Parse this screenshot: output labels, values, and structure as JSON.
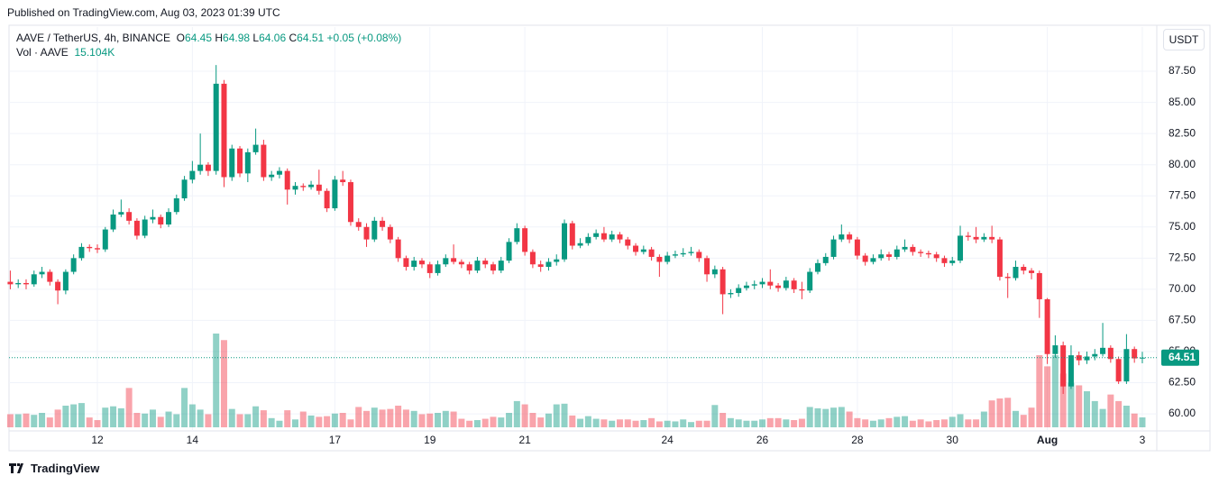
{
  "published": "Published on TradingView.com, Aug 03, 2023 01:39 UTC",
  "logo": "TradingView",
  "chart_data": {
    "type": "candlestick",
    "title": "AAVE / TetherUS, 4h, BINANCE",
    "ohlc_prefixes": [
      "O",
      "H",
      "L",
      "C"
    ],
    "change_label": "+0.05 (+0.08%)",
    "volume_title": "Vol · AAVE",
    "volume_value_label": "15.104K",
    "currency": "USDT",
    "up_color": "#089981",
    "down_color": "#f23645",
    "grid": true,
    "ylim": [
      58.63,
      91.05
    ],
    "yticks": [
      {
        "value": 60,
        "label": "60.00"
      },
      {
        "value": 62.5,
        "label": "62.50"
      },
      {
        "value": 65,
        "label": "65.00"
      },
      {
        "value": 67.5,
        "label": "67.50"
      },
      {
        "value": 70,
        "label": "70.00"
      },
      {
        "value": 72.5,
        "label": "72.50"
      },
      {
        "value": 75,
        "label": "75.00"
      },
      {
        "value": 77.5,
        "label": "77.50"
      },
      {
        "value": 80,
        "label": "80.00"
      },
      {
        "value": 82.5,
        "label": "82.50"
      },
      {
        "value": 85,
        "label": "85.00"
      },
      {
        "value": 87.5,
        "label": "87.50"
      }
    ],
    "categories": [
      null,
      null,
      null,
      null,
      null,
      null,
      null,
      null,
      null,
      null,
      null,
      "12",
      null,
      null,
      null,
      null,
      null,
      null,
      null,
      null,
      null,
      null,
      null,
      "14",
      null,
      null,
      null,
      null,
      null,
      null,
      null,
      null,
      null,
      null,
      null,
      null,
      null,
      null,
      null,
      null,
      null,
      "17",
      null,
      null,
      null,
      null,
      null,
      null,
      null,
      null,
      null,
      null,
      null,
      "19",
      null,
      null,
      null,
      null,
      null,
      null,
      null,
      null,
      null,
      null,
      null,
      "21",
      null,
      null,
      null,
      null,
      null,
      null,
      null,
      null,
      null,
      null,
      null,
      null,
      null,
      null,
      null,
      null,
      null,
      "24",
      null,
      null,
      null,
      null,
      null,
      null,
      null,
      null,
      null,
      null,
      null,
      "26",
      null,
      null,
      null,
      null,
      null,
      null,
      null,
      null,
      null,
      null,
      null,
      "28",
      null,
      null,
      null,
      null,
      null,
      null,
      null,
      null,
      null,
      null,
      null,
      "30",
      null,
      null,
      null,
      null,
      null,
      null,
      null,
      null,
      null,
      null,
      null,
      "Aug",
      null,
      null,
      null,
      null,
      null,
      null,
      null,
      null,
      null,
      null,
      null,
      "3"
    ],
    "open": [
      70.6,
      70.4,
      70.5,
      70.4,
      71.2,
      71.4,
      70.6,
      69.9,
      71.4,
      72.5,
      73.4,
      73.3,
      73.2,
      74.8,
      76.0,
      76.2,
      75.5,
      74.3,
      75.6,
      75.8,
      75.2,
      76.2,
      77.3,
      78.8,
      79.5,
      80.0,
      79.5,
      86.5,
      79.0,
      81.3,
      79.3,
      81.0,
      81.6,
      79.0,
      79.2,
      79.5,
      78.0,
      78.3,
      78.2,
      78.4,
      77.9,
      76.5,
      78.8,
      78.6,
      75.4,
      75.0,
      74.0,
      75.5,
      75.0,
      74.0,
      72.5,
      71.8,
      72.3,
      72.0,
      71.3,
      72.0,
      72.5,
      72.2,
      72.0,
      71.5,
      72.3,
      72.0,
      71.5,
      72.3,
      73.8,
      74.9,
      73.0,
      72.0,
      71.8,
      72.2,
      72.4,
      75.3,
      73.5,
      73.7,
      74.2,
      74.5,
      74.0,
      74.4,
      74.0,
      73.5,
      73.0,
      73.2,
      72.6,
      72.2,
      72.7,
      72.8,
      72.9,
      73.0,
      72.5,
      71.2,
      71.6,
      69.6,
      69.7,
      70.1,
      70.3,
      70.4,
      70.6,
      70.3,
      70.1,
      70.7,
      70.0,
      69.9,
      71.4,
      72.1,
      72.6,
      74.0,
      74.4,
      74.0,
      72.7,
      72.2,
      72.5,
      72.8,
      72.6,
      73.2,
      73.4,
      73.0,
      72.9,
      72.8,
      72.5,
      72.1,
      72.3,
      74.3,
      74.2,
      74.0,
      74.2,
      74.0,
      71.0,
      70.9,
      71.8,
      71.5,
      71.3,
      69.2,
      64.8,
      65.5,
      62.2,
      64.7,
      64.3,
      64.6,
      64.8,
      65.3,
      64.4,
      62.6,
      65.2,
      64.45
    ],
    "high": [
      71.5,
      70.8,
      70.8,
      71.5,
      71.8,
      71.6,
      70.8,
      71.6,
      72.8,
      73.7,
      73.6,
      73.6,
      75.0,
      76.4,
      77.2,
      76.5,
      75.7,
      75.9,
      76.4,
      76.0,
      76.5,
      77.6,
      79.1,
      80.3,
      82.5,
      80.2,
      88.0,
      86.8,
      81.6,
      81.5,
      81.3,
      82.9,
      82.0,
      79.5,
      79.8,
      79.7,
      78.6,
      78.5,
      78.7,
      79.6,
      78.1,
      79.1,
      79.5,
      78.8,
      75.7,
      75.3,
      75.8,
      75.8,
      75.2,
      74.2,
      72.7,
      72.6,
      72.5,
      72.2,
      72.3,
      72.8,
      73.6,
      72.4,
      72.2,
      72.6,
      72.5,
      72.2,
      72.6,
      74.1,
      75.3,
      75.1,
      73.2,
      72.3,
      72.5,
      72.8,
      75.6,
      75.5,
      74.1,
      74.5,
      74.8,
      75.0,
      74.7,
      74.6,
      74.2,
      73.7,
      73.5,
      73.4,
      72.8,
      73.0,
      73.1,
      73.3,
      73.4,
      73.2,
      72.7,
      71.9,
      71.8,
      70.0,
      70.4,
      70.6,
      70.7,
      70.9,
      71.6,
      70.5,
      71.0,
      70.9,
      70.6,
      71.7,
      72.4,
      72.9,
      74.3,
      75.2,
      74.6,
      74.2,
      72.9,
      72.8,
      73.2,
      73.0,
      73.5,
      74.0,
      73.6,
      73.2,
      73.1,
      73.0,
      72.7,
      72.6,
      75.1,
      74.6,
      75.0,
      74.5,
      75.1,
      74.2,
      71.3,
      72.3,
      72.0,
      71.7,
      71.5,
      69.3,
      66.3,
      65.8,
      65.5,
      65.0,
      65.0,
      65.2,
      67.3,
      65.5,
      64.6,
      66.4,
      65.4,
      64.98
    ],
    "low": [
      70.0,
      70.1,
      70.0,
      70.2,
      70.9,
      70.3,
      68.8,
      69.6,
      71.2,
      72.3,
      73.0,
      72.9,
      73.0,
      74.6,
      75.8,
      75.2,
      74.0,
      74.1,
      75.3,
      74.9,
      75.0,
      76.0,
      77.1,
      78.5,
      79.2,
      79.1,
      79.2,
      78.2,
      78.7,
      79.0,
      78.6,
      80.8,
      78.7,
      78.7,
      78.9,
      76.8,
      77.6,
      77.9,
      78.0,
      77.6,
      76.2,
      76.3,
      78.3,
      75.1,
      74.7,
      73.4,
      73.8,
      74.7,
      73.7,
      72.2,
      71.5,
      71.5,
      71.7,
      70.9,
      71.1,
      71.8,
      72.0,
      71.7,
      71.2,
      71.3,
      71.7,
      71.2,
      71.3,
      72.1,
      73.6,
      72.7,
      71.7,
      71.4,
      71.5,
      71.9,
      72.2,
      73.2,
      73.3,
      73.5,
      74.0,
      73.8,
      73.8,
      73.7,
      73.2,
      72.7,
      72.8,
      72.3,
      71.0,
      72.0,
      72.5,
      72.6,
      72.7,
      72.2,
      70.6,
      70.9,
      68.0,
      69.3,
      69.4,
      69.9,
      70.0,
      70.1,
      70.0,
      69.8,
      69.9,
      69.7,
      69.2,
      69.7,
      71.2,
      71.9,
      72.4,
      73.8,
      73.7,
      72.4,
      71.9,
      72.0,
      72.3,
      72.3,
      72.4,
      73.0,
      72.7,
      72.6,
      72.5,
      72.2,
      71.8,
      71.9,
      72.1,
      73.9,
      73.7,
      73.8,
      73.7,
      70.7,
      69.3,
      70.7,
      71.2,
      70.8,
      67.7,
      64.0,
      64.5,
      61.6,
      62.0,
      63.9,
      64.0,
      64.3,
      64.6,
      64.1,
      62.4,
      62.4,
      64.1,
      64.06
    ],
    "close": [
      70.4,
      70.5,
      70.4,
      71.2,
      71.4,
      70.6,
      69.9,
      71.4,
      72.5,
      73.4,
      73.3,
      73.2,
      74.8,
      76.0,
      76.2,
      75.5,
      74.3,
      75.6,
      75.8,
      75.2,
      76.2,
      77.3,
      78.8,
      79.5,
      80.0,
      79.5,
      86.5,
      79.0,
      81.3,
      79.3,
      81.0,
      81.6,
      79.0,
      79.2,
      79.5,
      78.0,
      78.3,
      78.2,
      78.4,
      77.9,
      76.5,
      78.8,
      78.6,
      75.4,
      75.0,
      74.0,
      75.5,
      75.0,
      74.0,
      72.5,
      71.8,
      72.3,
      72.0,
      71.3,
      72.0,
      72.5,
      72.2,
      72.0,
      71.5,
      72.3,
      72.0,
      71.5,
      72.3,
      73.8,
      74.9,
      73.0,
      72.0,
      71.8,
      72.2,
      72.4,
      75.3,
      73.5,
      73.7,
      74.2,
      74.5,
      74.0,
      74.4,
      74.0,
      73.5,
      73.0,
      73.2,
      72.6,
      72.2,
      72.7,
      72.8,
      72.9,
      73.0,
      72.5,
      71.2,
      71.6,
      69.6,
      69.7,
      70.1,
      70.3,
      70.4,
      70.6,
      70.3,
      70.1,
      70.7,
      70.0,
      69.9,
      71.4,
      72.1,
      72.6,
      74.0,
      74.4,
      74.0,
      72.7,
      72.2,
      72.5,
      72.8,
      72.6,
      73.2,
      73.4,
      73.0,
      72.9,
      72.8,
      72.5,
      72.1,
      72.3,
      74.3,
      74.2,
      74.0,
      74.2,
      74.0,
      71.0,
      70.9,
      71.8,
      71.5,
      71.3,
      69.2,
      64.8,
      65.5,
      62.2,
      64.7,
      64.3,
      64.6,
      64.8,
      65.3,
      64.4,
      62.6,
      65.2,
      64.45,
      64.51
    ],
    "volume": [
      20000,
      20000,
      21000,
      19000,
      22000,
      15000,
      27000,
      33000,
      35000,
      37000,
      15000,
      11000,
      30000,
      32000,
      29000,
      60000,
      22000,
      21000,
      27000,
      16000,
      24000,
      20000,
      60000,
      35000,
      27000,
      20000,
      143000,
      133000,
      28000,
      20000,
      20000,
      32000,
      26000,
      14000,
      10000,
      26000,
      12000,
      24000,
      18000,
      16000,
      17000,
      21000,
      22000,
      12000,
      31000,
      25000,
      30000,
      27000,
      28000,
      33000,
      27000,
      25000,
      20000,
      21000,
      22000,
      25000,
      24000,
      13000,
      10000,
      11000,
      13000,
      16000,
      15000,
      22000,
      40000,
      35000,
      22000,
      15000,
      21000,
      35000,
      36000,
      18000,
      13000,
      17000,
      13000,
      12000,
      10000,
      12000,
      12000,
      10000,
      11000,
      14000,
      9000,
      10000,
      9000,
      12000,
      8000,
      10000,
      10000,
      34000,
      22000,
      14000,
      12000,
      10000,
      10000,
      12000,
      14000,
      14000,
      12000,
      11000,
      13000,
      31000,
      29000,
      28000,
      30000,
      31000,
      24000,
      14000,
      12000,
      10000,
      12000,
      14000,
      16000,
      17000,
      10000,
      12000,
      9000,
      11000,
      12000,
      16000,
      20000,
      12000,
      12000,
      24000,
      41000,
      44000,
      45000,
      25000,
      19000,
      30000,
      110000,
      93000,
      110000,
      82000,
      68000,
      64000,
      55000,
      40000,
      28000,
      50000,
      40000,
      33000,
      21000,
      15104
    ]
  }
}
